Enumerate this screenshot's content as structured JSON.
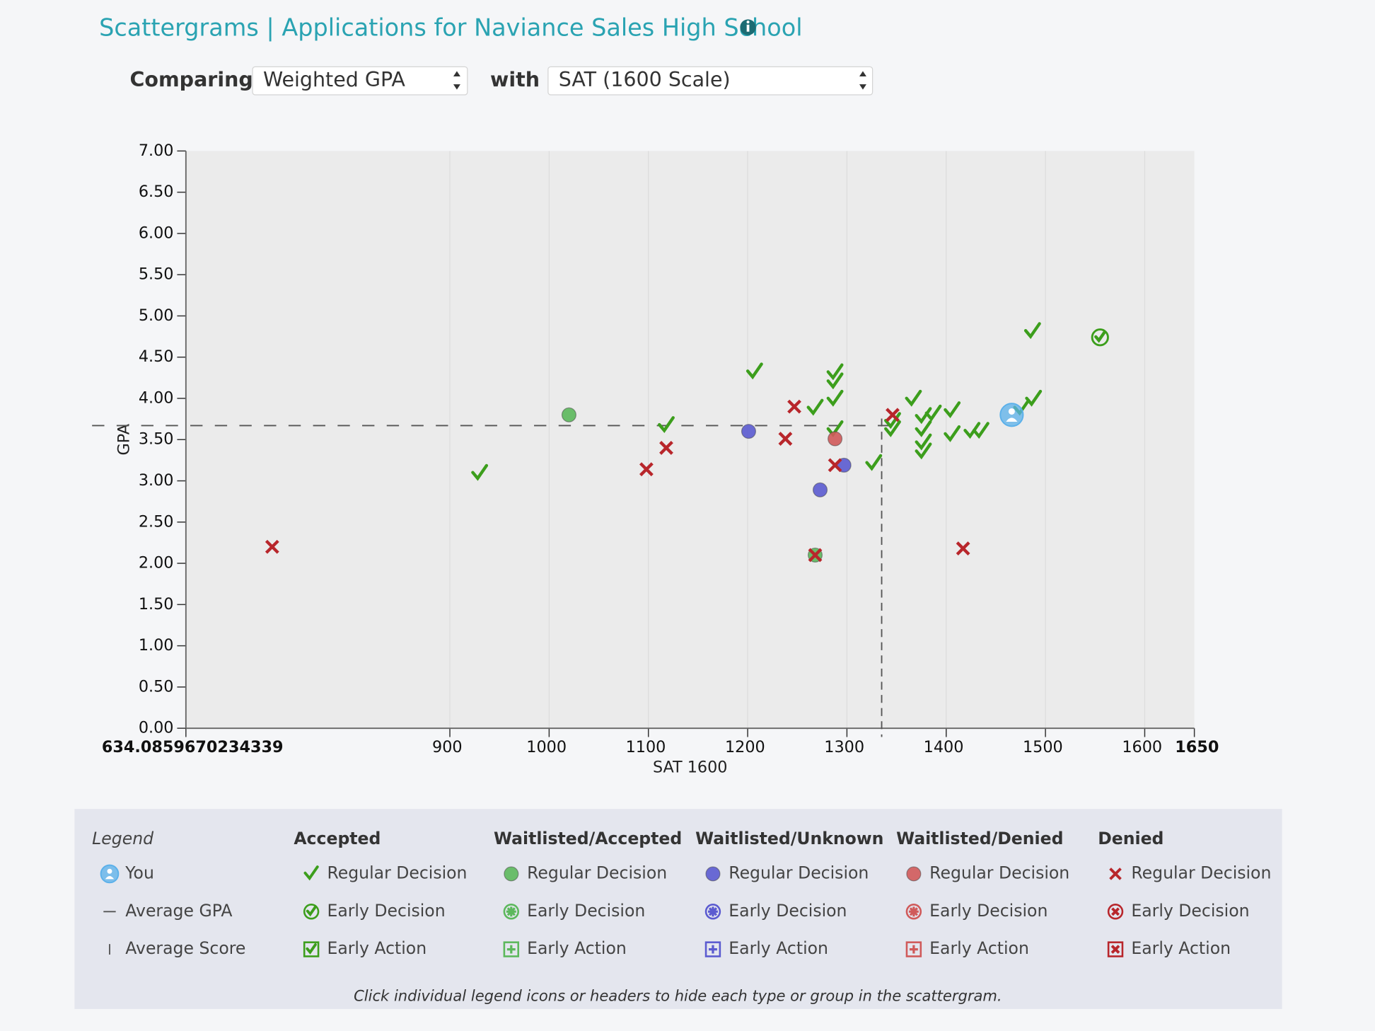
{
  "header": {
    "title": "Scattergrams | Applications for Naviance Sales High School"
  },
  "controls": {
    "comparing": "Comparing",
    "first_select": "Weighted GPA",
    "with": "with",
    "second_select": "SAT (1600 Scale)"
  },
  "legend": {
    "title": "Legend",
    "note": "Click individual legend icons or headers to hide each type or group in the scattergram."
  },
  "chart_data": {
    "type": "scatter",
    "x_label": "SAT 1600",
    "y_label": "GPA",
    "xlim": [
      634.0859670234339,
      1650
    ],
    "ylim": [
      0,
      7
    ],
    "xticks": [
      634.0859670234339,
      900,
      1000,
      1100,
      1200,
      1300,
      1400,
      1500,
      1600,
      1650
    ],
    "yticks": [
      {
        "value": 0,
        "label": "0.00"
      },
      {
        "value": 0.5,
        "label": "0.50"
      },
      {
        "value": 1,
        "label": "1.00"
      },
      {
        "value": 1.5,
        "label": "1.50"
      },
      {
        "value": 2,
        "label": "2.00"
      },
      {
        "value": 2.5,
        "label": "2.50"
      },
      {
        "value": 3,
        "label": "3.00"
      },
      {
        "value": 3.5,
        "label": "3.50"
      },
      {
        "value": 4,
        "label": "4.00"
      },
      {
        "value": 4.5,
        "label": "4.50"
      },
      {
        "value": 5,
        "label": "5.00"
      },
      {
        "value": 5.5,
        "label": "5.50"
      },
      {
        "value": 6,
        "label": "6.00"
      },
      {
        "value": 6.5,
        "label": "6.50"
      },
      {
        "value": 7,
        "label": "7.00"
      }
    ],
    "grid": true,
    "you": {
      "name": "You",
      "color": "#5ab0ea",
      "x": 1466,
      "y": 3.8
    },
    "average_gpa": {
      "name": "Average GPA",
      "value": 3.67
    },
    "average_score": {
      "name": "Average Score",
      "value": 1335
    },
    "groups": [
      {
        "name": "Accepted",
        "color": "#3c9e1c",
        "series": [
          {
            "name": "Regular Decision",
            "marker": "check",
            "x": [
              930,
              1207,
              1118,
              1268,
              1288,
              1288,
              1288,
              1288,
              1327,
              1346,
              1346,
              1367,
              1377,
              1377,
              1377,
              1377,
              1387,
              1406,
              1406,
              1426,
              1435,
              1476,
              1488,
              1487
            ],
            "values": [
              3.09,
              4.32,
              3.67,
              3.88,
              4.31,
              4.2,
              3.99,
              3.62,
              3.21,
              3.62,
              3.72,
              3.99,
              3.78,
              3.62,
              3.46,
              3.35,
              3.81,
              3.85,
              3.56,
              3.6,
              3.6,
              3.88,
              3.99,
              4.81
            ]
          },
          {
            "name": "Early Decision",
            "marker": "check-circle",
            "x": [
              1555
            ],
            "values": [
              4.74
            ]
          },
          {
            "name": "Early Action",
            "marker": "check-box",
            "x": [],
            "values": []
          }
        ]
      },
      {
        "name": "Waitlisted/Accepted",
        "color": "#5cb85c",
        "series": [
          {
            "name": "Regular Decision",
            "marker": "dot",
            "x": [
              1020,
              1268
            ],
            "values": [
              3.8,
              2.1
            ]
          },
          {
            "name": "Early Decision",
            "marker": "dot-star",
            "x": [],
            "values": []
          },
          {
            "name": "Early Action",
            "marker": "dot-box",
            "x": [],
            "values": []
          }
        ]
      },
      {
        "name": "Waitlisted/Unknown",
        "color": "#5b5bd0",
        "series": [
          {
            "name": "Regular Decision",
            "marker": "dot",
            "x": [
              1201,
              1273,
              1297
            ],
            "values": [
              3.6,
              2.89,
              3.19
            ]
          },
          {
            "name": "Early Decision",
            "marker": "dot-star",
            "x": [],
            "values": []
          },
          {
            "name": "Early Action",
            "marker": "dot-box",
            "x": [],
            "values": []
          }
        ]
      },
      {
        "name": "Waitlisted/Denied",
        "color": "#d05a5a",
        "series": [
          {
            "name": "Regular Decision",
            "marker": "dot",
            "x": [
              1288
            ],
            "values": [
              3.51
            ]
          },
          {
            "name": "Early Decision",
            "marker": "dot-star",
            "x": [],
            "values": []
          },
          {
            "name": "Early Action",
            "marker": "dot-box",
            "x": [],
            "values": []
          }
        ]
      },
      {
        "name": "Denied",
        "color": "#b8262b",
        "series": [
          {
            "name": "Regular Decision",
            "marker": "cross",
            "x": [
              721,
              1098,
              1118,
              1238,
              1247,
              1288,
              1346,
              1417,
              1268
            ],
            "values": [
              2.2,
              3.14,
              3.4,
              3.51,
              3.9,
              3.19,
              3.8,
              2.18,
              2.1
            ]
          },
          {
            "name": "Early Decision",
            "marker": "cross-circle",
            "x": [],
            "values": []
          },
          {
            "name": "Early Action",
            "marker": "cross-box",
            "x": [],
            "values": []
          }
        ]
      }
    ]
  }
}
